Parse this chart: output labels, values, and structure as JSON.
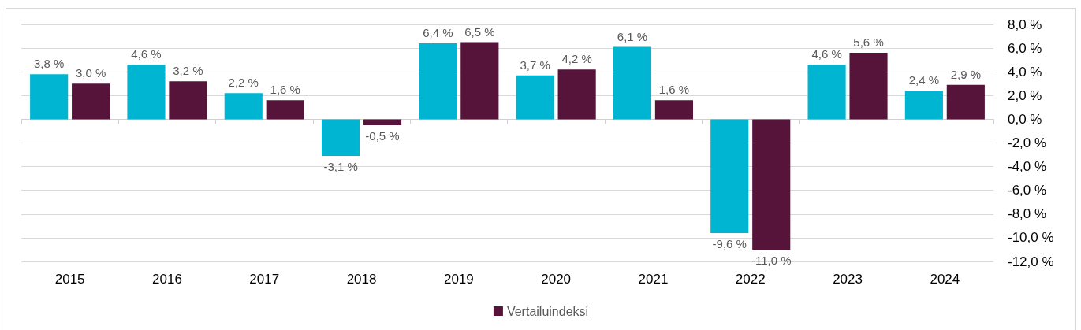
{
  "chart_data": {
    "type": "bar",
    "categories": [
      "2015",
      "2016",
      "2017",
      "2018",
      "2019",
      "2020",
      "2021",
      "2022",
      "2023",
      "2024"
    ],
    "series": [
      {
        "color": "#00b5d1",
        "values": [
          3.8,
          4.6,
          2.2,
          -3.1,
          6.4,
          3.7,
          6.1,
          -9.6,
          4.6,
          2.4
        ],
        "value_labels": [
          "3,8 %",
          "4,6 %",
          "2,2 %",
          "-3,1 %",
          "6,4 %",
          "3,7 %",
          "6,1 %",
          "-9,6 %",
          "4,6 %",
          "2,4 %"
        ]
      },
      {
        "name": "Vertailuindeksi",
        "color": "#56143a",
        "values": [
          3.0,
          3.2,
          1.6,
          -0.5,
          6.5,
          4.2,
          1.6,
          -11.0,
          5.6,
          2.9
        ],
        "value_labels": [
          "3,0 %",
          "3,2 %",
          "1,6 %",
          "-0,5 %",
          "6,5 %",
          "4,2 %",
          "1,6 %",
          "-11,0 %",
          "5,6 %",
          "2,9 %"
        ]
      }
    ],
    "ylim": [
      -12,
      8
    ],
    "yticks": [
      {
        "value": 8,
        "label": "8,0 %"
      },
      {
        "value": 6,
        "label": "6,0 %"
      },
      {
        "value": 4,
        "label": "4,0 %"
      },
      {
        "value": 2,
        "label": "2,0 %"
      },
      {
        "value": 0,
        "label": "0,0 %"
      },
      {
        "value": -2,
        "label": "-2,0 %"
      },
      {
        "value": -4,
        "label": "-4,0 %"
      },
      {
        "value": -6,
        "label": "-6,0 %"
      },
      {
        "value": -8,
        "label": "-8,0 %"
      },
      {
        "value": -10,
        "label": "-10,0 %"
      },
      {
        "value": -12,
        "label": "-12,0 %"
      }
    ],
    "grid": "y",
    "legend": "bottom"
  }
}
